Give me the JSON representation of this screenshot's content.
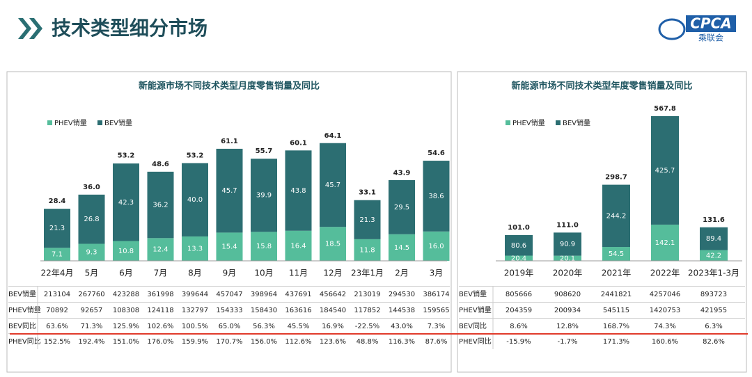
{
  "header": {
    "title": "技术类型细分市场",
    "logo": "CPCA",
    "logo_sub": "乘联会"
  },
  "chart_data": [
    {
      "type": "bar",
      "stacked": true,
      "title": "新能源市场不同技术类型月度零售销量及同比",
      "categories": [
        "22年4月",
        "5月",
        "6月",
        "7月",
        "8月",
        "9月",
        "10月",
        "11月",
        "12月",
        "23年1月",
        "2月",
        "3月"
      ],
      "series": [
        {
          "name": "PHEV销量",
          "color": "#55bd9b",
          "values": [
            7.1,
            9.3,
            10.8,
            12.4,
            13.3,
            15.4,
            15.8,
            16.4,
            18.5,
            11.8,
            14.5,
            16.0
          ],
          "value_labels": [
            "7.1",
            "9.3",
            "10.8",
            "12.4",
            "13.3",
            "15.4",
            "15.8",
            "16.4",
            "18.5",
            "11.8",
            "14.5",
            "16.0"
          ]
        },
        {
          "name": "BEV销量",
          "color": "#2c6e72",
          "values": [
            21.3,
            26.8,
            42.3,
            36.2,
            40.0,
            45.7,
            39.9,
            43.8,
            45.7,
            21.3,
            29.5,
            38.6
          ],
          "value_labels": [
            "21.3",
            "26.8",
            "42.3",
            "36.2",
            "40.0",
            "45.7",
            "39.9",
            "43.8",
            "45.7",
            "21.3",
            "29.5",
            "38.6"
          ]
        }
      ],
      "totals": [
        28.4,
        36.0,
        53.2,
        48.6,
        53.2,
        61.1,
        55.7,
        60.1,
        64.1,
        33.1,
        43.9,
        54.6
      ],
      "total_labels": [
        "28.4",
        "36.0",
        "53.2",
        "48.6",
        "53.2",
        "61.1",
        "55.7",
        "60.1",
        "64.1",
        "33.1",
        "43.9",
        "54.6"
      ],
      "legend": "top-left",
      "table": {
        "row_labels": [
          "BEV销量",
          "PHEV销量",
          "BEV同比",
          "PHEV同比"
        ],
        "rows": [
          [
            "213104",
            "267760",
            "423288",
            "361998",
            "399644",
            "457047",
            "398964",
            "437691",
            "456642",
            "213019",
            "294530",
            "386174"
          ],
          [
            "70892",
            "92657",
            "108308",
            "124118",
            "132797",
            "154333",
            "158430",
            "163616",
            "184540",
            "117852",
            "144538",
            "159565"
          ],
          [
            "63.6%",
            "71.3%",
            "125.9%",
            "102.6%",
            "100.5%",
            "65.0%",
            "56.3%",
            "45.5%",
            "16.9%",
            "-22.5%",
            "43.0%",
            "7.3%"
          ],
          [
            "152.5%",
            "192.4%",
            "151.0%",
            "176.0%",
            "159.9%",
            "170.7%",
            "156.0%",
            "112.6%",
            "123.6%",
            "48.8%",
            "116.3%",
            "87.6%"
          ]
        ]
      }
    },
    {
      "type": "bar",
      "stacked": true,
      "title": "新能源市场不同技术类型年度零售销量及同比",
      "categories": [
        "2019年",
        "2020年",
        "2021年",
        "2022年",
        "2023年1-3月"
      ],
      "series": [
        {
          "name": "PHEV销量",
          "color": "#55bd9b",
          "values": [
            20.4,
            20.1,
            54.5,
            142.1,
            42.2
          ],
          "value_labels": [
            "20.4",
            "20.1",
            "54.5",
            "142.1",
            "42.2"
          ]
        },
        {
          "name": "BEV销量",
          "color": "#2c6e72",
          "values": [
            80.6,
            90.9,
            244.2,
            425.7,
            89.4
          ],
          "value_labels": [
            "80.6",
            "90.9",
            "244.2",
            "425.7",
            "89.4"
          ]
        }
      ],
      "totals": [
        101.0,
        111.0,
        298.7,
        567.8,
        131.6
      ],
      "total_labels": [
        "101.0",
        "111.0",
        "298.7",
        "567.8",
        "131.6"
      ],
      "legend": "top-left",
      "table": {
        "row_labels": [
          "BEV销量",
          "PHEV销量",
          "BEV同比",
          "PHEV同比"
        ],
        "rows": [
          [
            "805666",
            "908620",
            "2441821",
            "4257046",
            "893723"
          ],
          [
            "204359",
            "200934",
            "545115",
            "1420753",
            "421955"
          ],
          [
            "8.6%",
            "12.8%",
            "168.7%",
            "74.3%",
            "6.3%"
          ],
          [
            "-15.9%",
            "-1.7%",
            "171.3%",
            "160.6%",
            "82.6%"
          ]
        ]
      }
    }
  ]
}
